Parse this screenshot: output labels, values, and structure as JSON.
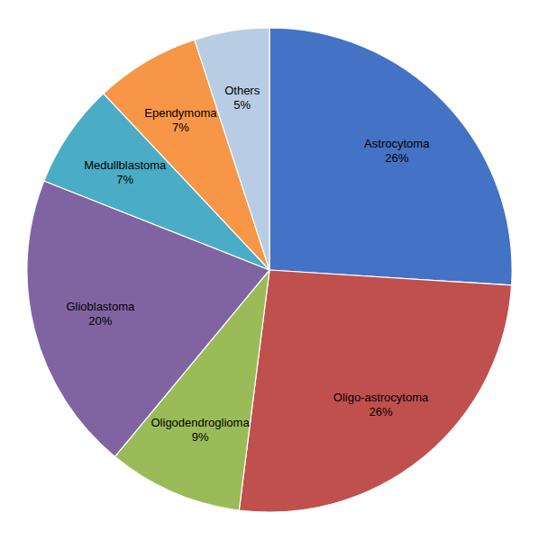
{
  "chart_data": {
    "type": "pie",
    "categories": [
      "Astrocytoma",
      "Oligo-astrocytoma",
      "Oligodendroglioma",
      "Glioblastoma",
      "Medullblastoma",
      "Ependymoma",
      "Others"
    ],
    "values": [
      26,
      26,
      9,
      20,
      7,
      7,
      5
    ],
    "value_labels": [
      "26%",
      "26%",
      "9%",
      "20%",
      "7%",
      "7%",
      "5%"
    ],
    "colors": [
      "#4472C4",
      "#C0504D",
      "#9BBB59",
      "#8064A2",
      "#4BACC6",
      "#F79646",
      "#B8CCE4"
    ],
    "data_labels": true
  }
}
